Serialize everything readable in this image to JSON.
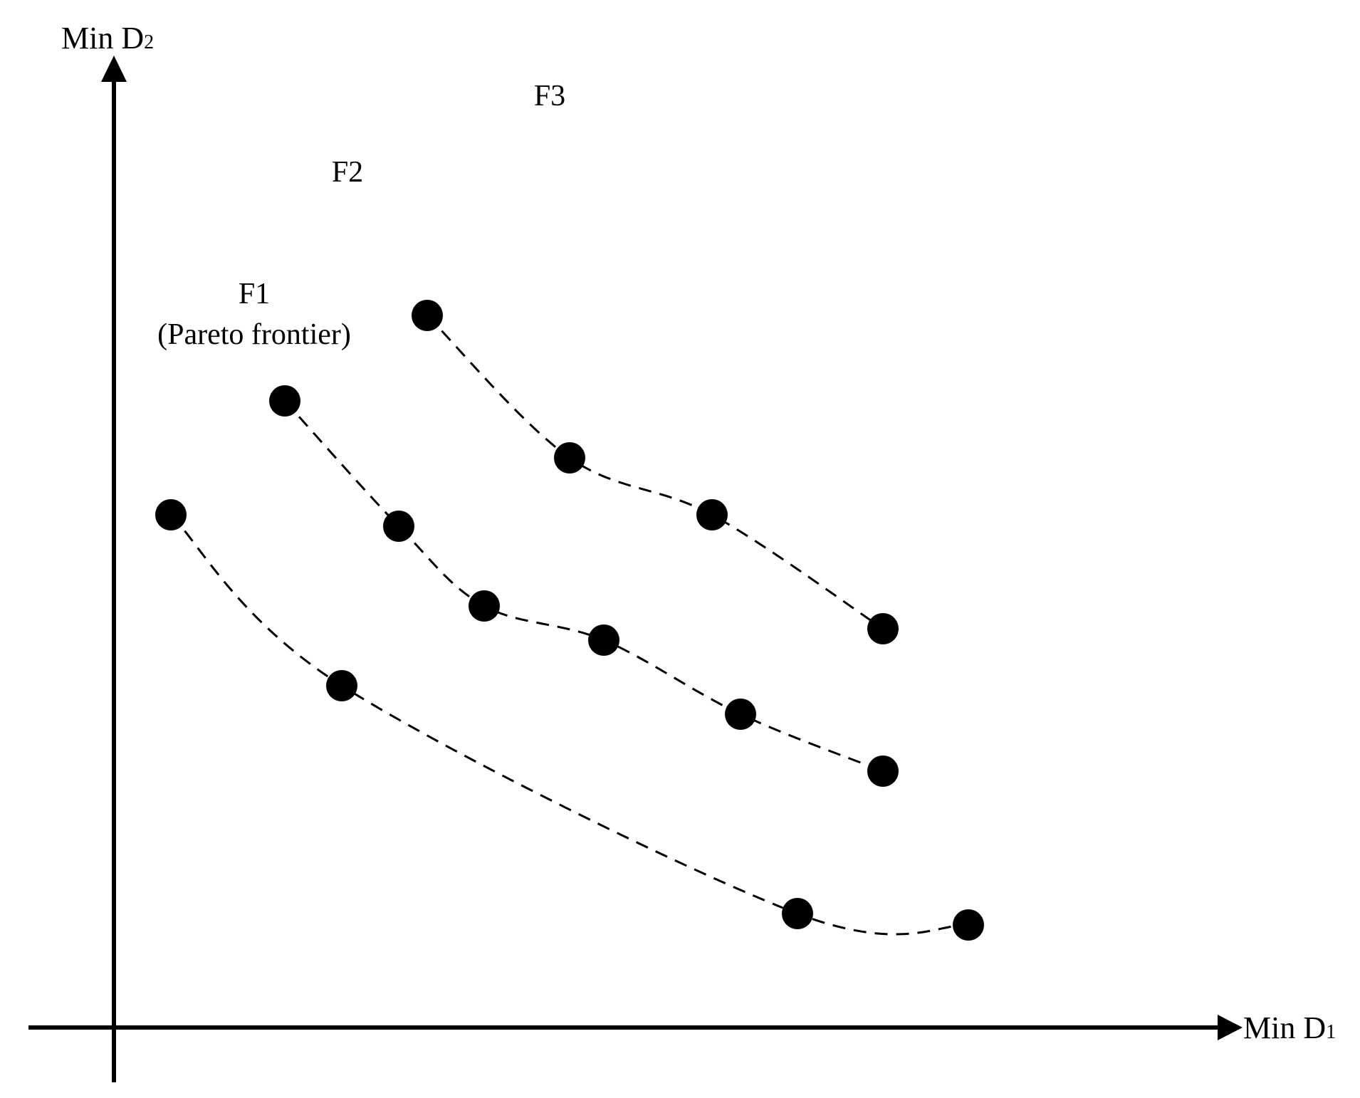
{
  "axes": {
    "x_label": "Min D",
    "x_subscript": "1",
    "y_label": "Min D",
    "y_subscript": "2"
  },
  "fronts": [
    {
      "id": "F1",
      "label": "F1",
      "sublabel": "(Pareto frontier)",
      "points": [
        [
          1,
          9
        ],
        [
          4,
          6
        ],
        [
          12,
          2
        ],
        [
          15,
          1.8
        ]
      ]
    },
    {
      "id": "F2",
      "label": "F2",
      "sublabel": "",
      "points": [
        [
          3,
          11
        ],
        [
          5,
          8.8
        ],
        [
          6.5,
          7.4
        ],
        [
          8.6,
          6.8
        ],
        [
          11,
          5.5
        ],
        [
          13.5,
          4.5
        ]
      ]
    },
    {
      "id": "F3",
      "label": "F3",
      "sublabel": "",
      "points": [
        [
          5.5,
          12.5
        ],
        [
          8,
          10
        ],
        [
          10.5,
          9
        ],
        [
          13.5,
          7
        ]
      ]
    }
  ],
  "colors": {
    "ink": "#000000",
    "background": "#ffffff"
  }
}
